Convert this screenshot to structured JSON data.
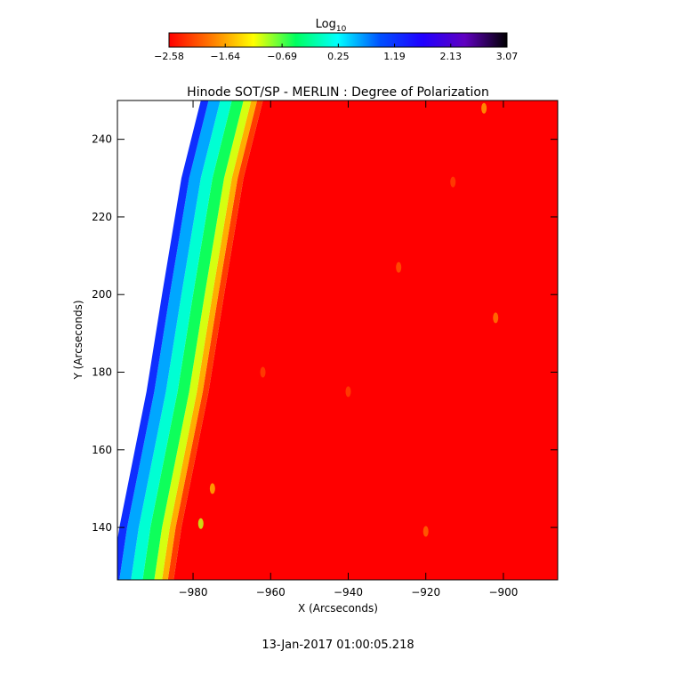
{
  "chart_data": {
    "type": "heatmap",
    "title": "Hinode SOT/SP - MERLIN : Degree of Polarization",
    "xlabel": "X (Arcseconds)",
    "ylabel": "Y (Arcseconds)",
    "xlim": [
      -999.5,
      -886
    ],
    "ylim": [
      126.5,
      250
    ],
    "x_ticks": [
      -980,
      -960,
      -940,
      -920,
      -900
    ],
    "y_ticks": [
      140,
      160,
      180,
      200,
      220,
      240
    ],
    "x_tick_labels": [
      "−980",
      "−960",
      "−940",
      "−920",
      "−900"
    ],
    "y_tick_labels": [
      "140",
      "160",
      "180",
      "200",
      "220",
      "240"
    ],
    "colorbar": {
      "title": "Log",
      "title_sub": "10",
      "min": -2.58,
      "max": 3.07,
      "tick_values": [
        -2.58,
        -1.64,
        -0.69,
        0.25,
        1.19,
        2.13,
        3.07
      ],
      "tick_labels": [
        "−2.58",
        "−1.64",
        "−0.69",
        "0.25",
        "1.19",
        "2.13",
        "3.07"
      ],
      "colormap": [
        "#ff0000",
        "#ff7a00",
        "#ffff00",
        "#00ff60",
        "#00ffff",
        "#0050ff",
        "#2000ff",
        "#6000c0",
        "#000000"
      ]
    },
    "background_value": -2.58,
    "limb": {
      "description": "Solar limb band: log degree of polarization rises from off-limb side",
      "edge_points": [
        [
          -962,
          250
        ],
        [
          -967,
          230
        ],
        [
          -972,
          200
        ],
        [
          -976,
          175
        ],
        [
          -980,
          155
        ],
        [
          -983,
          140
        ],
        [
          -985,
          126.5
        ]
      ],
      "band": [
        {
          "offset": 0,
          "value": -2.58
        },
        {
          "offset": -1.5,
          "value": -1.9
        },
        {
          "offset": -3,
          "value": -1.3
        },
        {
          "offset": -5,
          "value": -0.8
        },
        {
          "offset": -8,
          "value": -0.2
        },
        {
          "offset": -11,
          "value": 0.3
        },
        {
          "offset": -14,
          "value": 0.9
        },
        {
          "offset": -16,
          "value": 1.6
        }
      ]
    },
    "features": [
      {
        "x": -978,
        "y": 141,
        "value": -1.0
      },
      {
        "x": -975,
        "y": 150,
        "value": -1.6
      },
      {
        "x": -905,
        "y": 248,
        "value": -1.7
      },
      {
        "x": -902,
        "y": 194,
        "value": -1.9
      },
      {
        "x": -920,
        "y": 139,
        "value": -2.0
      },
      {
        "x": -927,
        "y": 207,
        "value": -2.1
      },
      {
        "x": -940,
        "y": 175,
        "value": -2.2
      },
      {
        "x": -962,
        "y": 180,
        "value": -2.2
      },
      {
        "x": -913,
        "y": 229,
        "value": -2.2
      }
    ],
    "timestamp": "13-Jan-2017 01:00:05.218"
  }
}
